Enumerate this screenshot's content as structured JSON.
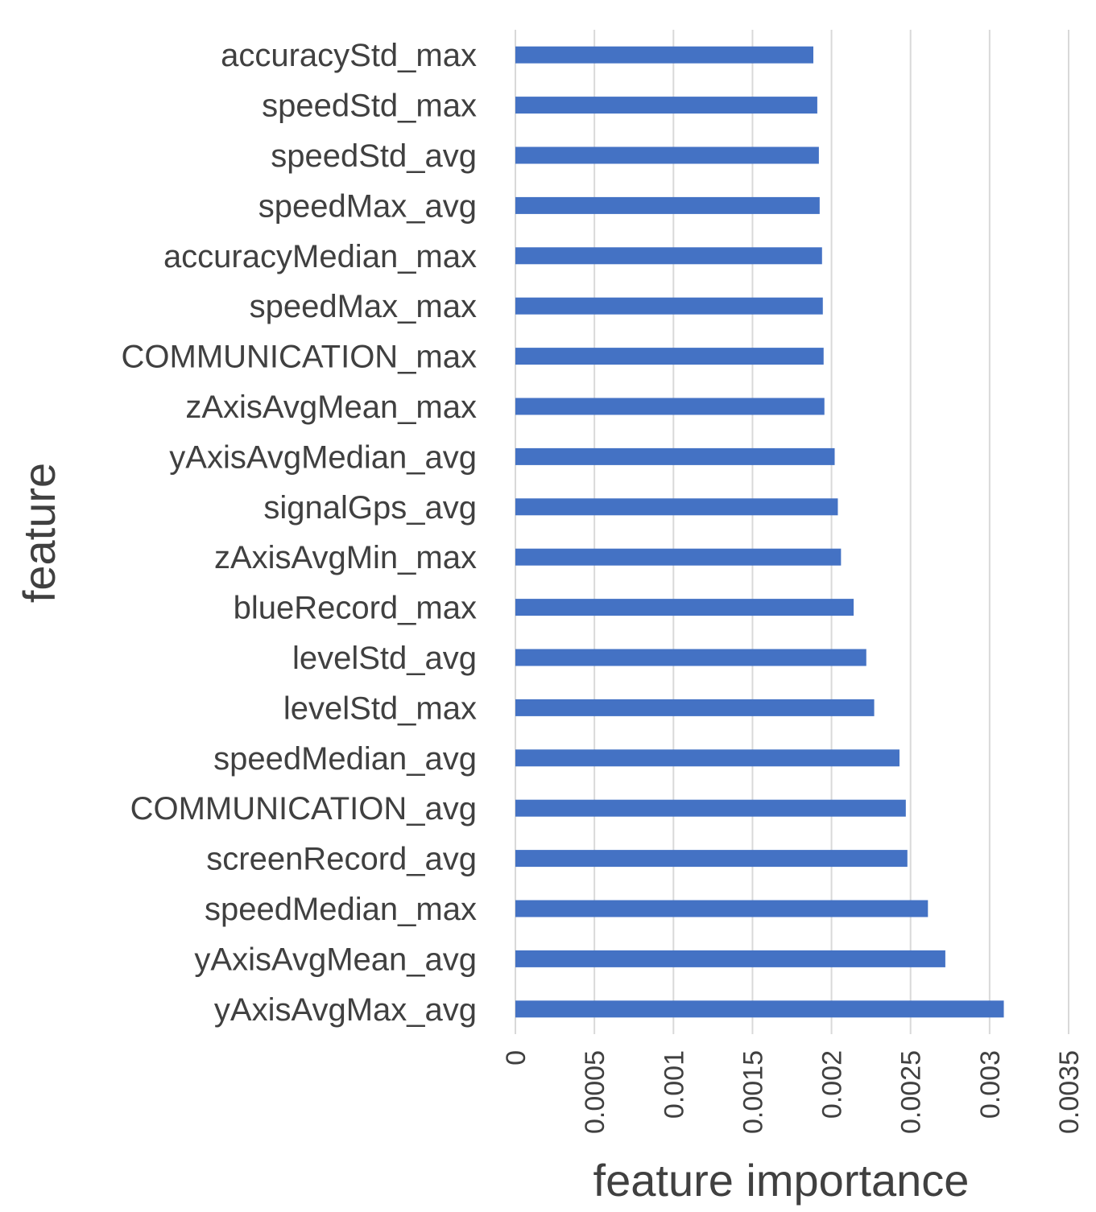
{
  "colors": {
    "bar": "#4472c4",
    "grid": "#d9d9d9",
    "text": "#404040"
  },
  "chart_data": {
    "type": "bar",
    "orientation": "horizontal",
    "xlabel": "feature importance",
    "ylabel": "feature",
    "xlim": [
      0,
      0.0035
    ],
    "xticks": [
      "0",
      "0.0005",
      "0.001",
      "0.0015",
      "0.002",
      "0.0025",
      "0.003",
      "0.0035"
    ],
    "grid": true,
    "categories": [
      "accuracyStd_max",
      "speedStd_max",
      "speedStd_avg",
      "speedMax_avg",
      "accuracyMedian_max",
      "speedMax_max",
      "COMMUNICATION_max",
      "zAxisAvgMean_max",
      "yAxisAvgMedian_avg",
      "signalGps_avg",
      "zAxisAvgMin_max",
      "blueRecord_max",
      "levelStd_avg",
      "levelStd_max",
      "speedMedian_avg",
      "COMMUNICATION_avg",
      "screenRecord_avg",
      "speedMedian_max",
      "yAxisAvgMean_avg",
      "yAxisAvgMax_avg"
    ],
    "values": [
      0.001885,
      0.00191,
      0.00192,
      0.001925,
      0.00194,
      0.001945,
      0.00195,
      0.001955,
      0.00202,
      0.00204,
      0.00206,
      0.00214,
      0.00222,
      0.00227,
      0.00243,
      0.00247,
      0.00248,
      0.00261,
      0.00272,
      0.00309
    ]
  }
}
